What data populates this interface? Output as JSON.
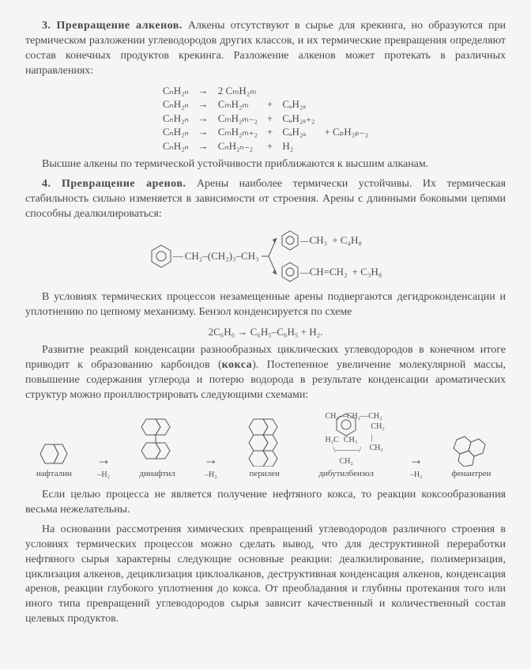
{
  "sections": {
    "s3": {
      "num": "3.",
      "title": "Превращение алкенов.",
      "intro": "Алкены отсутствуют в сырье для крекинга, но образуются при термическом разложении углеводородов других классов, и их термические превращения определяют состав конечных продуктов крекинга. Разложение алкенов может протекать в различных направлениях:",
      "eq": [
        [
          "CₙH₂ₙ",
          "→",
          "2 CₘH₂ₘ",
          "",
          "",
          ""
        ],
        [
          "CₙH₂ₙ",
          "→",
          "CₘH₂ₘ",
          "+",
          "CₐH₂ₐ",
          ""
        ],
        [
          "CₙH₂ₙ",
          "→",
          "CₘH₂ₘ₋₂",
          "+",
          "CₐH₂ₐ₊₂",
          ""
        ],
        [
          "CₙH₂ₙ",
          "→",
          "CₘH₂ₘ₊₂",
          "+",
          "CₐH₂ₐ",
          "+   CₚH₂ₚ₋₂"
        ],
        [
          "CₙH₂ₙ",
          "→",
          "CₙH₂ₙ₋₂",
          "+",
          "H₂",
          ""
        ]
      ],
      "tail": "Высшие алкены по термической устойчивости приближаются к высшим алканам."
    },
    "s4": {
      "num": "4.",
      "title": "Превращение аренов.",
      "intro": "Арены наиболее термически устойчивы. Их термическая стабильность сильно изменяется в зависимости от строения. Арены с длинными боковыми цепями способны деалкилироваться:",
      "dealk": {
        "src_chain": "CH₂–(CH₂)₃–CH₃",
        "p1_sub": "CH₃",
        "p1_plus": "+ C₄H₈",
        "p2_sub": "CH=CH₂",
        "p2_plus": "+ C₃H₈"
      },
      "para2": "В условиях термических процессов незамещенные арены подвергаются дегидроконденсации и уплотнению по цепному механизму. Бензол конденсируется по схеме",
      "benzene_eq": "2C₆H₆    →    C₆H₅–C₆H₅    +    H₂.",
      "para3a": "Развитие реакций конденсации разнообразных циклических углеводородов в конечном итоге приводит к образованию карбоидов (",
      "koksa": "кокса",
      "para3b": "). Постепенное увеличение молекулярной массы, повышение содержания углерода и потерю водорода в результате конденсации ароматических структур можно проиллюстрировать следующими схемами:",
      "labels": {
        "naft": "нафталин",
        "dinaf": "динафтил",
        "peri": "перилен",
        "dibut": "дибутилбензол",
        "fen": "фенантрен"
      },
      "chains": {
        "c1": "CH₂—CH₂—CH₂",
        "c2": "H₂C",
        "c3": "CH₃",
        "c4": "CH₂"
      },
      "para4": "Если целью процесса не является получение нефтяного кокса, то реакции коксообразования весьма нежелательны.",
      "para5": "На основании рассмотрения химических превращений углеводородов различного строения в условиях термических процессов можно сделать вывод, что для деструктивной переработки нефтяного сырья характерны следующие основные реакции: деалкилирование, полимеризация, циклизация алкенов, дециклизация циклоалканов, деструктивная конденсация алкенов, конденсация аренов, реакции глубокого уплотнения до кокса. От преобладания и глубины протекания того или иного типа превращений углеводородов сырья зависит качественный и количественный состав целевых продуктов."
    }
  },
  "minusH2": "–H₂"
}
